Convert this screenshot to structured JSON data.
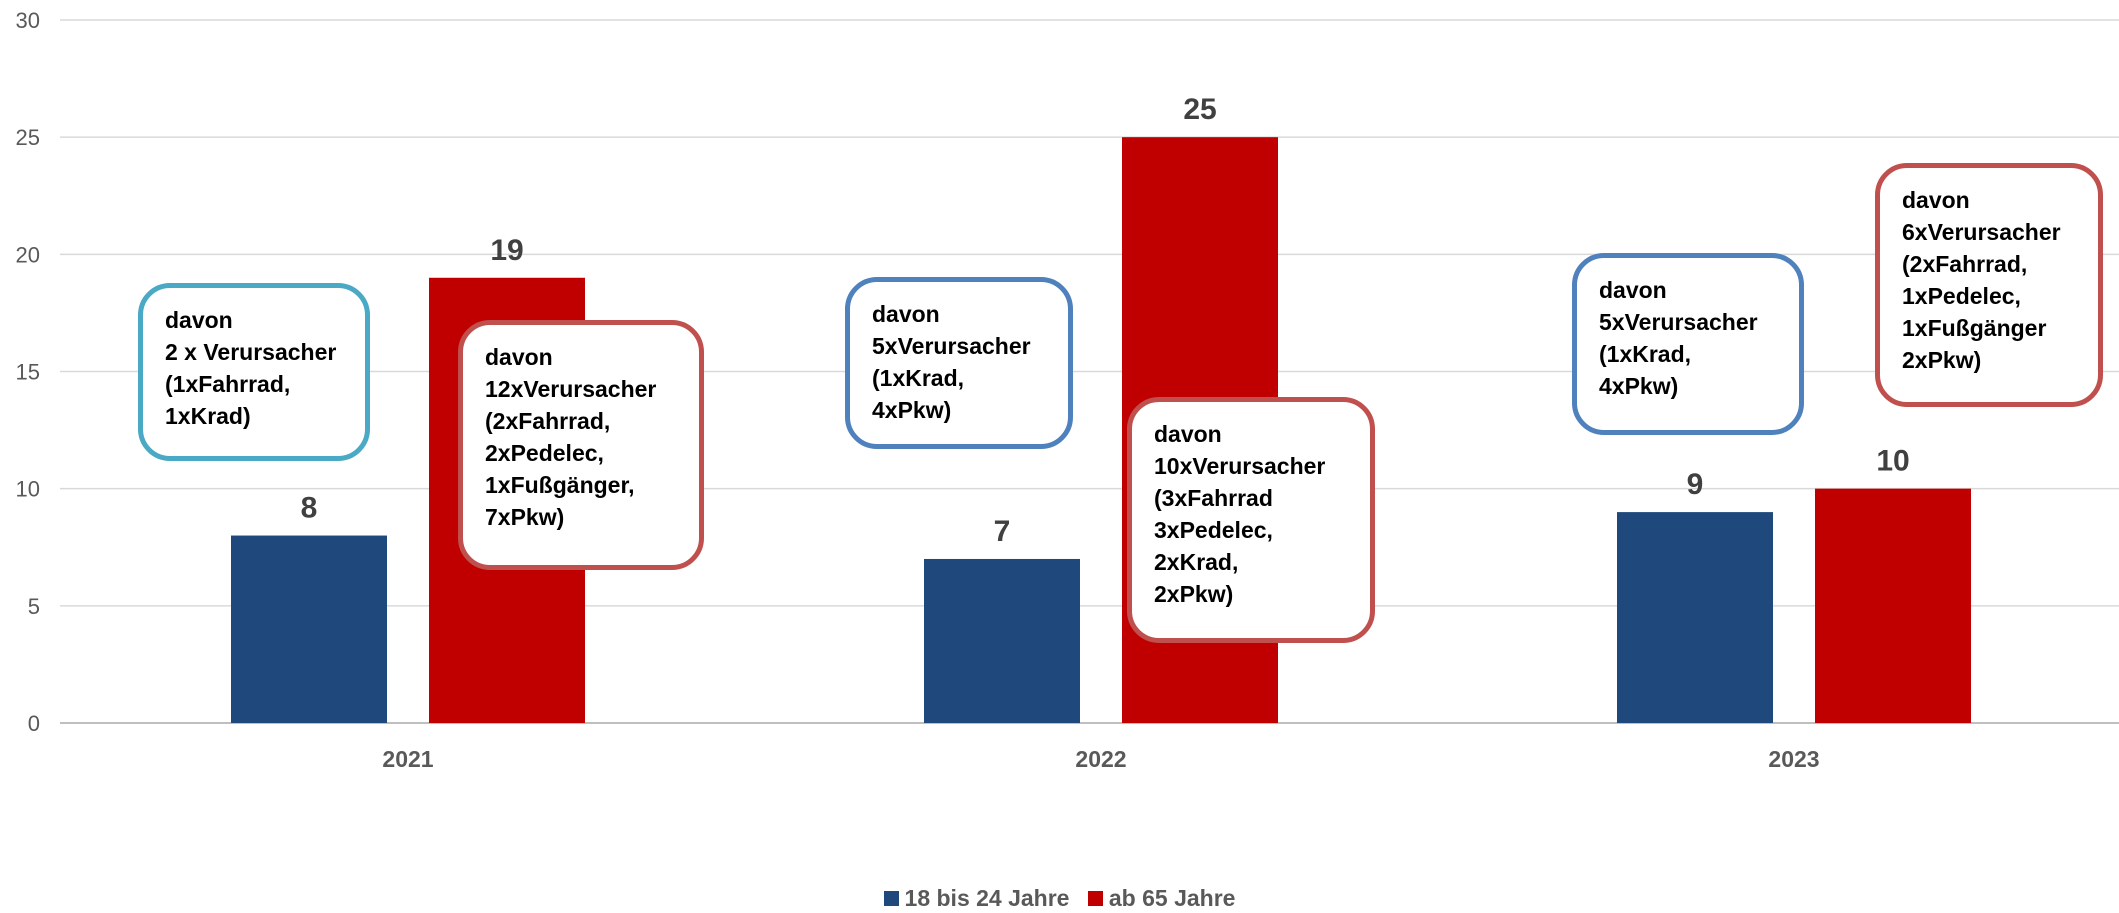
{
  "chart_data": {
    "type": "bar",
    "categories": [
      "2021",
      "2022",
      "2023"
    ],
    "series": [
      {
        "name": "18 bis 24 Jahre",
        "values": [
          8,
          7,
          9
        ],
        "color": "#1f497d"
      },
      {
        "name": "ab 65 Jahre",
        "values": [
          19,
          25,
          10
        ],
        "color": "#c00000"
      }
    ],
    "yticks": [
      "0",
      "5",
      "10",
      "15",
      "20",
      "25",
      "30"
    ],
    "ylim": [
      0,
      30
    ],
    "grid": true,
    "legend": "bottom",
    "annotations": [
      {
        "lines": [
          "davon",
          "2 x Verursacher",
          "(1xFahrrad,",
          "1xKrad)"
        ],
        "border": "#4aa9c4"
      },
      {
        "lines": [
          "davon",
          "12xVerursacher",
          "(2xFahrrad,",
          "2xPedelec,",
          "1xFußgänger,",
          "7xPkw)"
        ],
        "border": "#c0504d"
      },
      {
        "lines": [
          "davon",
          "5xVerursacher",
          "(1xKrad,",
          "4xPkw)"
        ],
        "border": "#4f81bd"
      },
      {
        "lines": [
          "davon",
          "10xVerursacher",
          "(3xFahrrad",
          "3xPedelec,",
          "2xKrad,",
          "2xPkw)"
        ],
        "border": "#c0504d"
      },
      {
        "lines": [
          "davon",
          "5xVerursacher",
          "(1xKrad,",
          "4xPkw)"
        ],
        "border": "#4f81bd"
      },
      {
        "lines": [
          "davon",
          "6xVerursacher",
          "(2xFahrrad,",
          "1xPedelec,",
          "1xFußgänger",
          "2xPkw)"
        ],
        "border": "#c0504d"
      }
    ]
  }
}
